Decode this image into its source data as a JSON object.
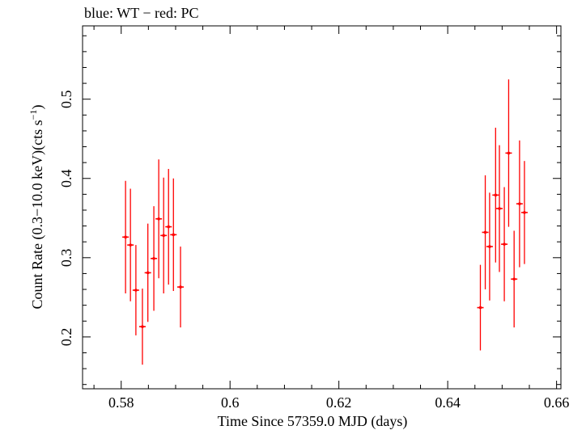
{
  "chart_data": {
    "type": "scatter",
    "title": "blue: WT − red: PC",
    "xlabel": "Time Since 57359.0 MJD (days)",
    "ylabel_main": "Count Rate (0.3−10.0 keV)(cts s",
    "ylabel_sup": "−1",
    "ylabel_close": ")",
    "xlim": [
      0.5729,
      0.6608
    ],
    "ylim": [
      0.1346,
      0.5925
    ],
    "x_ticks": [
      0.58,
      0.6,
      0.62,
      0.64,
      0.66
    ],
    "x_tick_labels": [
      "0.58",
      "0.6",
      "0.62",
      "0.64",
      "0.66"
    ],
    "y_ticks": [
      0.2,
      0.3,
      0.4,
      0.5
    ],
    "y_tick_labels": [
      "0.2",
      "0.3",
      "0.4",
      "0.5"
    ],
    "series": [
      {
        "name": "PC",
        "color": "#ff0000",
        "points": [
          {
            "x": 0.5808,
            "y": 0.326,
            "err": 0.071
          },
          {
            "x": 0.5817,
            "y": 0.316,
            "err": 0.071
          },
          {
            "x": 0.5827,
            "y": 0.259,
            "err": 0.057
          },
          {
            "x": 0.5839,
            "y": 0.213,
            "err": 0.048
          },
          {
            "x": 0.5849,
            "y": 0.281,
            "err": 0.062
          },
          {
            "x": 0.586,
            "y": 0.299,
            "err": 0.066
          },
          {
            "x": 0.5869,
            "y": 0.349,
            "err": 0.075
          },
          {
            "x": 0.5878,
            "y": 0.328,
            "err": 0.073
          },
          {
            "x": 0.5887,
            "y": 0.339,
            "err": 0.073
          },
          {
            "x": 0.5896,
            "y": 0.329,
            "err": 0.071
          },
          {
            "x": 0.5909,
            "y": 0.263,
            "err": 0.051
          },
          {
            "x": 0.646,
            "y": 0.237,
            "err": 0.054
          },
          {
            "x": 0.6469,
            "y": 0.332,
            "err": 0.072
          },
          {
            "x": 0.6477,
            "y": 0.314,
            "err": 0.068
          },
          {
            "x": 0.6488,
            "y": 0.379,
            "err": 0.085
          },
          {
            "x": 0.6495,
            "y": 0.362,
            "err": 0.08
          },
          {
            "x": 0.6504,
            "y": 0.317,
            "err": 0.072
          },
          {
            "x": 0.6512,
            "y": 0.432,
            "err": 0.093
          },
          {
            "x": 0.6522,
            "y": 0.273,
            "err": 0.061
          },
          {
            "x": 0.6532,
            "y": 0.368,
            "err": 0.08
          },
          {
            "x": 0.6541,
            "y": 0.357,
            "err": 0.065
          }
        ]
      }
    ]
  }
}
